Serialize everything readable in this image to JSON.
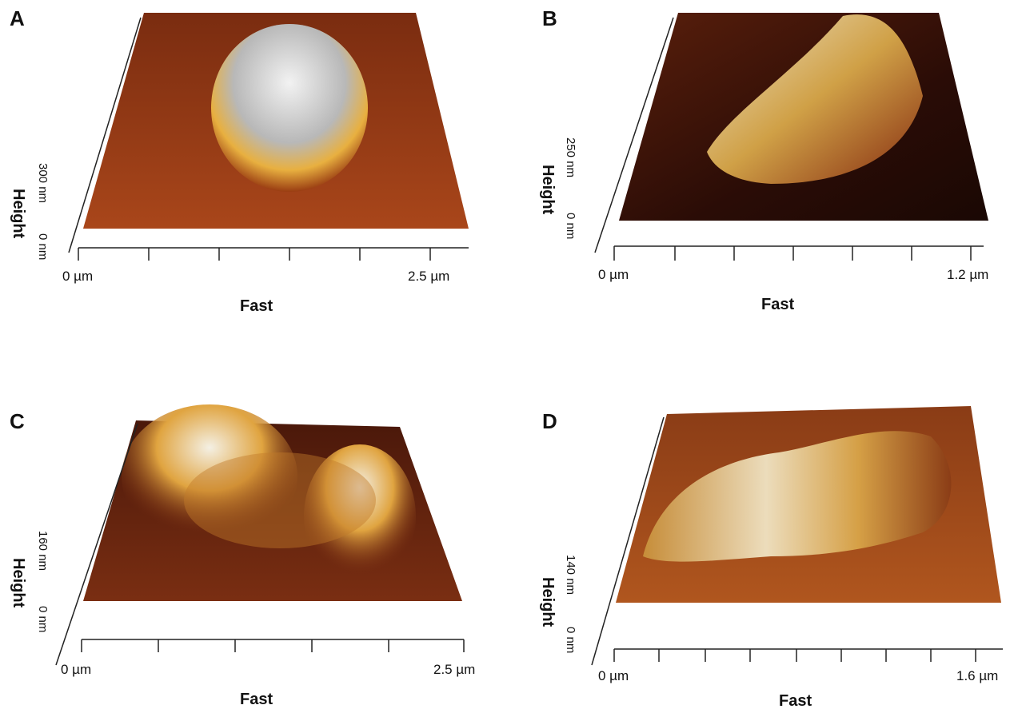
{
  "panels": [
    {
      "letter": "A",
      "x_start": "0 µm",
      "x_end": "2.5 µm",
      "x_label": "Fast",
      "y_label": "Height",
      "z_top": "300 nm",
      "z_bottom": "0 nm"
    },
    {
      "letter": "B",
      "x_start": "0 µm",
      "x_end": "1.2 µm",
      "x_label": "Fast",
      "y_label": "Height",
      "z_top": "250 nm",
      "z_bottom": "0 nm"
    },
    {
      "letter": "C",
      "x_start": "0 µm",
      "x_end": "2.5 µm",
      "x_label": "Fast",
      "y_label": "Height",
      "z_top": "160 nm",
      "z_bottom": "0 nm"
    },
    {
      "letter": "D",
      "x_start": "0 µm",
      "x_end": "1.6 µm",
      "x_label": "Fast",
      "y_label": "Height",
      "z_top": "140 nm",
      "z_bottom": "0 nm"
    }
  ],
  "colors": {
    "surface_dark": "#3a140a",
    "surface_mid": "#8b3a14",
    "surface_light": "#d98a2c",
    "peak": "#e8e4d8"
  }
}
